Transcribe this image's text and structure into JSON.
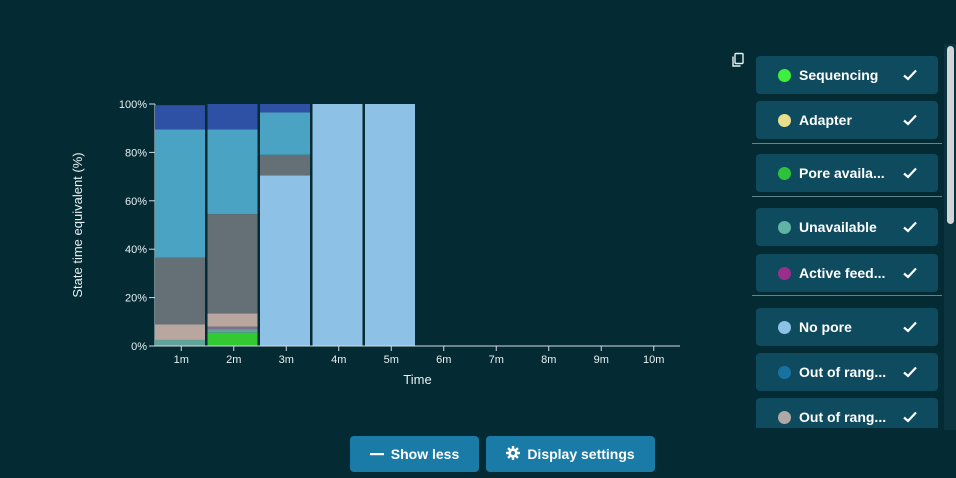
{
  "chart_data": {
    "type": "bar",
    "stacked": true,
    "xlabel": "Time",
    "ylabel": "State time equivalent (%)",
    "ylim": [
      0,
      100
    ],
    "yticks": [
      "0%",
      "20%",
      "40%",
      "60%",
      "80%",
      "100%"
    ],
    "categories": [
      "1m",
      "2m",
      "3m",
      "4m",
      "5m",
      "6m",
      "7m",
      "8m",
      "9m",
      "10m"
    ],
    "series": [
      {
        "color": "#33c933",
        "values": [
          0,
          5.5,
          0,
          0,
          0,
          0,
          0,
          0,
          0,
          0
        ]
      },
      {
        "color": "#5fa39b",
        "values": [
          2.5,
          1.5,
          0,
          0,
          0,
          0,
          0,
          0,
          0,
          0
        ]
      },
      {
        "color": "#7f6f8f",
        "values": [
          0,
          1,
          0,
          0,
          0,
          0,
          0,
          0,
          0,
          0
        ]
      },
      {
        "color": "#b9a79f",
        "values": [
          6.5,
          5.5,
          0,
          0,
          0,
          0,
          0,
          0,
          0,
          0
        ]
      },
      {
        "color": "#8ec1e6",
        "values": [
          0,
          0,
          70.5,
          100,
          100,
          0,
          0,
          0,
          0,
          0
        ]
      },
      {
        "color": "#646f76",
        "values": [
          27.5,
          41,
          8.5,
          0,
          0,
          0,
          0,
          0,
          0,
          0
        ]
      },
      {
        "color": "#4aa3c2",
        "values": [
          53,
          35,
          17.5,
          0,
          0,
          0,
          0,
          0,
          0,
          0
        ]
      },
      {
        "color": "#2f51a5",
        "values": [
          10,
          10.5,
          3.5,
          0,
          0,
          0,
          0,
          0,
          0,
          0
        ]
      }
    ]
  },
  "legend": {
    "items": [
      {
        "label": "Sequencing",
        "color": "#3df03d"
      },
      {
        "label": "Adapter",
        "color": "#e8de8c"
      },
      {
        "label": "Pore availa...",
        "color": "#2ec23a"
      },
      {
        "label": "Unavailable",
        "color": "#5fb4a3"
      },
      {
        "label": "Active feed...",
        "color": "#9a2f8b"
      },
      {
        "label": "No pore",
        "color": "#8ec1e6"
      },
      {
        "label": "Out of rang...",
        "color": "#1872a0"
      },
      {
        "label": "Out of rang...",
        "color": "#b0a8a6"
      }
    ]
  },
  "buttons": {
    "show_less": "Show less",
    "display_settings": "Display settings"
  }
}
